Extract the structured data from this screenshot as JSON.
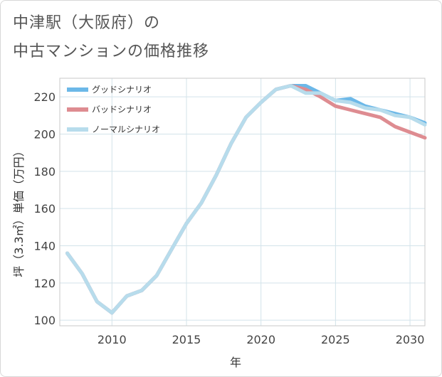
{
  "title_line1": "中津駅（大阪府）の",
  "title_line2": "中古マンションの価格推移",
  "chart_data": {
    "type": "line",
    "title": "中津駅（大阪府）の中古マンションの価格推移",
    "xlabel": "年",
    "ylabel": "坪（3.3㎡）単価（万円）",
    "xlim": [
      2006.5,
      2031
    ],
    "ylim": [
      97,
      230
    ],
    "xticks": [
      2010,
      2015,
      2020,
      2025,
      2030
    ],
    "yticks": [
      100,
      120,
      140,
      160,
      180,
      200,
      220
    ],
    "grid": true,
    "legend_position": "top-left",
    "series": [
      {
        "name": "グッドシナリオ",
        "color": "#6cb8e8",
        "x": [
          2007,
          2008,
          2009,
          2010,
          2011,
          2012,
          2013,
          2014,
          2015,
          2016,
          2017,
          2018,
          2019,
          2020,
          2021,
          2022,
          2023,
          2024,
          2025,
          2026,
          2027,
          2028,
          2029,
          2030,
          2031
        ],
        "values": [
          136,
          125,
          110,
          104,
          113,
          116,
          124,
          138,
          152,
          163,
          178,
          195,
          209,
          217,
          224,
          226,
          226,
          222,
          218,
          219,
          215,
          213,
          211,
          209,
          206
        ]
      },
      {
        "name": "バッドシナリオ",
        "color": "#de8c91",
        "x": [
          2007,
          2008,
          2009,
          2010,
          2011,
          2012,
          2013,
          2014,
          2015,
          2016,
          2017,
          2018,
          2019,
          2020,
          2021,
          2022,
          2023,
          2024,
          2025,
          2026,
          2027,
          2028,
          2029,
          2030,
          2031
        ],
        "values": [
          136,
          125,
          110,
          104,
          113,
          116,
          124,
          138,
          152,
          163,
          178,
          195,
          209,
          217,
          224,
          226,
          224,
          220,
          215,
          213,
          211,
          209,
          204,
          201,
          198
        ]
      },
      {
        "name": "ノーマルシナリオ",
        "color": "#b7dcec",
        "x": [
          2007,
          2008,
          2009,
          2010,
          2011,
          2012,
          2013,
          2014,
          2015,
          2016,
          2017,
          2018,
          2019,
          2020,
          2021,
          2022,
          2023,
          2024,
          2025,
          2026,
          2027,
          2028,
          2029,
          2030,
          2031
        ],
        "values": [
          136,
          125,
          110,
          104,
          113,
          116,
          124,
          138,
          152,
          163,
          178,
          195,
          209,
          217,
          224,
          226,
          222,
          222,
          218,
          217,
          214,
          213,
          210,
          209,
          205
        ]
      }
    ]
  }
}
